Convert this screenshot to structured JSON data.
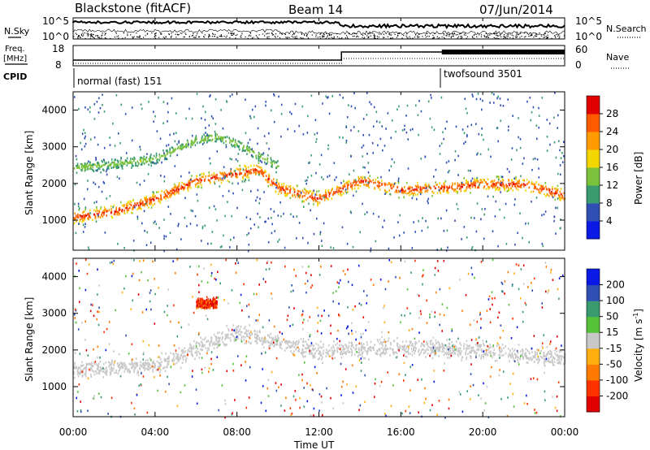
{
  "header": {
    "station": "Blackstone (fitACF)",
    "beam": "Beam 14",
    "date": "07/Jun/2014"
  },
  "top_panels": {
    "nsky_label": "N.Sky",
    "nsearch_label": "N.Search",
    "freq_label_line1": "Freq.",
    "freq_label_line2": "[MHz]",
    "nave_label": "Nave",
    "cpid_label": "CPID",
    "noise_ticks": [
      "10^5",
      "10^0"
    ],
    "freq_ticks": [
      "18",
      "8"
    ],
    "nave_ticks": [
      "60",
      "0"
    ],
    "cpid_segments": [
      {
        "label": "normal (fast) 151",
        "start_hour": 0,
        "end_hour": 18
      },
      {
        "label": "twofsound 3501",
        "start_hour": 18,
        "end_hour": 24
      }
    ]
  },
  "axes": {
    "xlabel": "Time UT",
    "ylabel_power": "Slant Range [km]",
    "ylabel_velocity": "Slant Range [km]",
    "x_ticks": [
      "00:00",
      "04:00",
      "08:00",
      "12:00",
      "16:00",
      "20:00",
      "00:00"
    ],
    "y_ticks": [
      "1000",
      "2000",
      "3000",
      "4000"
    ]
  },
  "colorbars": {
    "power": {
      "title": "Power [dB]",
      "ticks": [
        "28",
        "24",
        "20",
        "16",
        "12",
        "8",
        "4"
      ],
      "colors": [
        "#e00000",
        "#ff5a00",
        "#ff9a00",
        "#f2d600",
        "#7ac23b",
        "#3a9b6e",
        "#2f4fb5",
        "#0a1ae6"
      ]
    },
    "velocity": {
      "title": "Velocity [m s",
      "title_sup": "-1",
      "title_end": "]",
      "ticks": [
        "200",
        "100",
        "50",
        "15",
        "-15",
        "-50",
        "-100",
        "-200"
      ],
      "colors": [
        "#0a1ae6",
        "#2f4fb5",
        "#3a9b6e",
        "#55c23a",
        "#c8c8c8",
        "#ffae10",
        "#ff7a00",
        "#ff3300",
        "#e00000"
      ]
    }
  },
  "chart_data": [
    {
      "type": "heatmap",
      "title": "Power",
      "xlabel": "Time UT",
      "ylabel": "Slant Range [km]",
      "xlim": [
        0,
        24
      ],
      "ylim": [
        180,
        4500
      ],
      "colorbar_label": "Power [dB]",
      "colorbar_range": [
        0,
        30
      ],
      "features": [
        {
          "name": "main_band",
          "hours": [
            0,
            2,
            4,
            6,
            8,
            9,
            10,
            12,
            14,
            16,
            18,
            20,
            22,
            24
          ],
          "range_km": [
            1100,
            1250,
            1600,
            2100,
            2300,
            2400,
            1900,
            1600,
            2100,
            1850,
            1900,
            2000,
            2000,
            1700
          ],
          "power_db": 27
        },
        {
          "name": "upper_band",
          "hours": [
            0,
            2,
            4,
            6,
            7,
            8,
            9,
            10
          ],
          "range_km": [
            2450,
            2550,
            2700,
            3200,
            3300,
            3100,
            2800,
            2500
          ],
          "power_db": 14
        }
      ]
    },
    {
      "type": "heatmap",
      "title": "Velocity",
      "xlabel": "Time UT",
      "ylabel": "Slant Range [km]",
      "xlim": [
        0,
        24
      ],
      "ylim": [
        180,
        4500
      ],
      "colorbar_label": "Velocity [m s-1]",
      "colorbar_range": [
        -200,
        200
      ],
      "features": [
        {
          "name": "ground_scatter_band",
          "hours": [
            0,
            4,
            8,
            12,
            16,
            20,
            24
          ],
          "range_km": [
            1500,
            1600,
            2500,
            2000,
            2100,
            2000,
            1800
          ],
          "velocity_ms": 0
        },
        {
          "name": "negative_patch",
          "hours": [
            6,
            7
          ],
          "range_km": [
            3300,
            3400
          ],
          "velocity_ms": -200
        }
      ]
    }
  ]
}
